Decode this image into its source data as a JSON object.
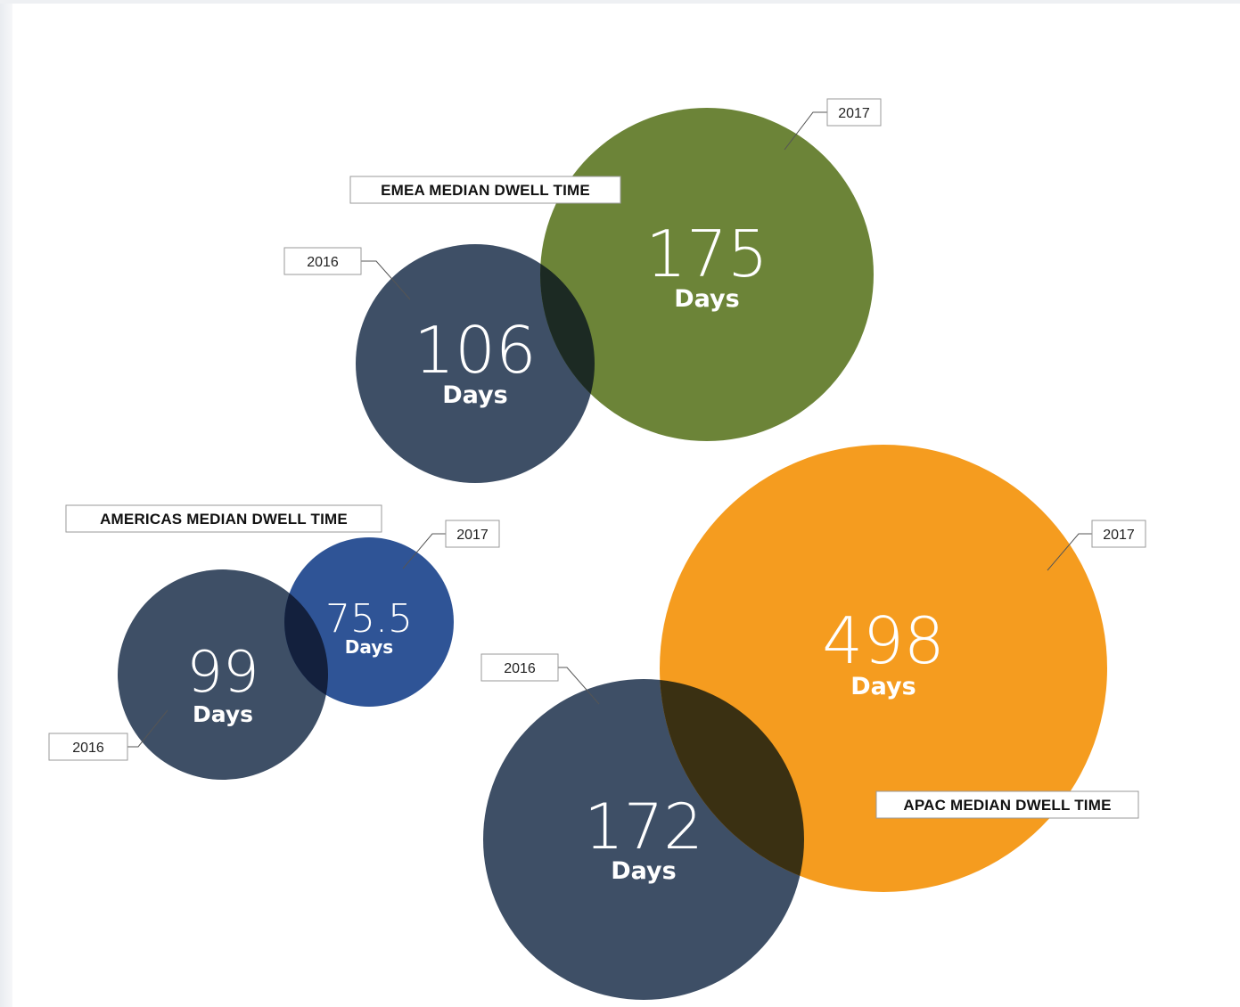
{
  "colors": {
    "dark_2016": "#3e4f66",
    "emea_2017": "#6c8438",
    "americas_2017": "#2f5496",
    "apac_2017": "#f59c1f"
  },
  "chart_data": {
    "type": "bubble",
    "unit": "Days",
    "groups": [
      {
        "id": "emea",
        "title": "EMEA MEDIAN DWELL TIME",
        "values": [
          {
            "year": "2016",
            "value": 106,
            "label": "106"
          },
          {
            "year": "2017",
            "value": 175,
            "label": "175"
          }
        ]
      },
      {
        "id": "americas",
        "title": "AMERICAS MEDIAN DWELL TIME",
        "values": [
          {
            "year": "2016",
            "value": 99,
            "label": "99"
          },
          {
            "year": "2017",
            "value": 75.5,
            "label": "75.5"
          }
        ]
      },
      {
        "id": "apac",
        "title": "APAC MEDIAN DWELL TIME",
        "values": [
          {
            "year": "2016",
            "value": 172,
            "label": "172"
          },
          {
            "year": "2017",
            "value": 498,
            "label": "498"
          }
        ]
      }
    ]
  }
}
